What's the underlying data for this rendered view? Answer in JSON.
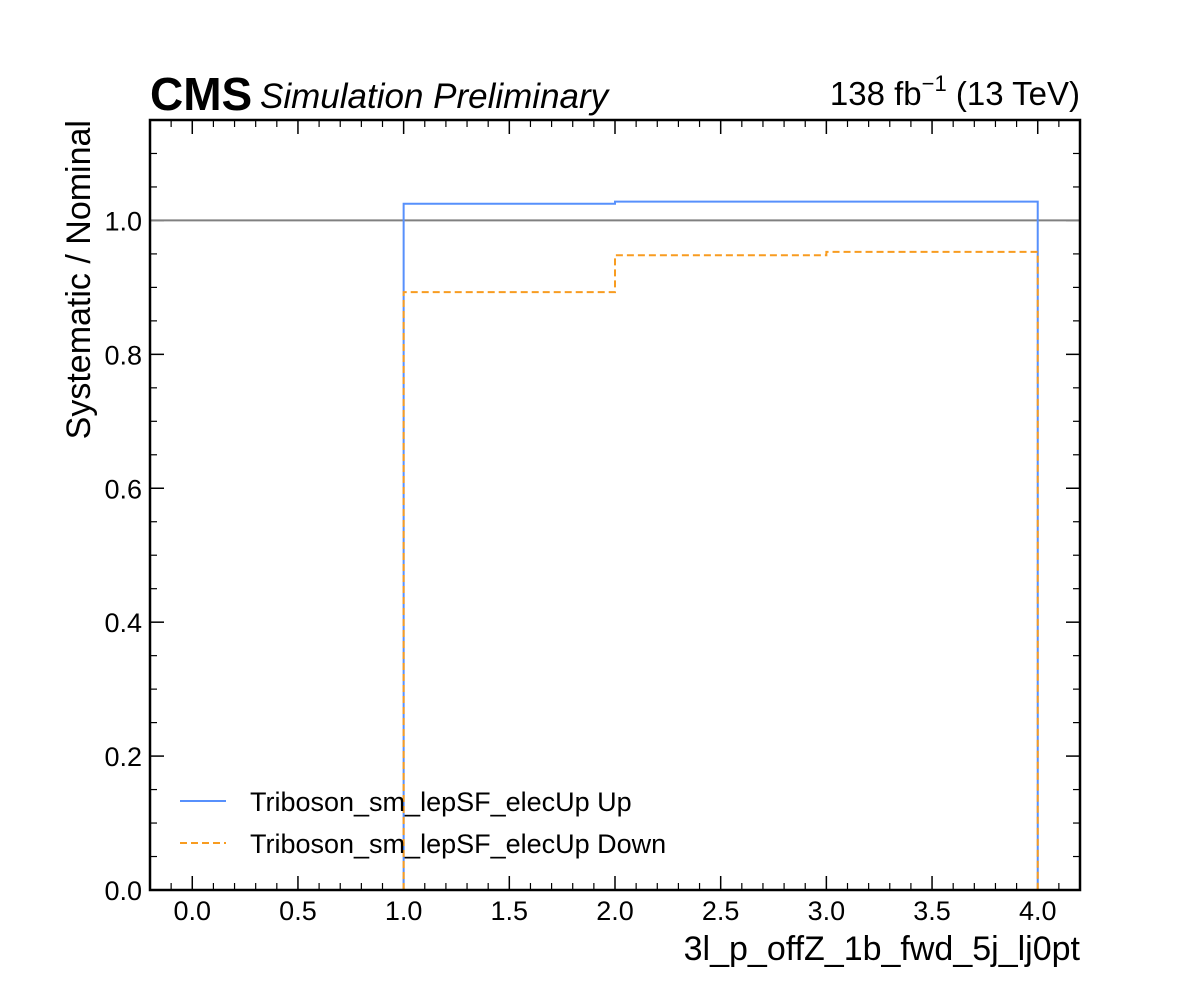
{
  "header": {
    "experiment": "CMS",
    "status": "Simulation Preliminary",
    "lumi_value": "138 fb",
    "lumi_exp": "−1",
    "lumi_energy": " (13 TeV)"
  },
  "chart_data": {
    "type": "line",
    "style": "step",
    "xlabel": "3l_p_offZ_1b_fwd_5j_lj0pt",
    "ylabel": "Systematic / Nominal",
    "xlim": [
      -0.2,
      4.2
    ],
    "ylim": [
      0.0,
      1.15
    ],
    "x_ticks": [
      "0.0",
      "0.5",
      "1.0",
      "1.5",
      "2.0",
      "2.5",
      "3.0",
      "3.5",
      "4.0"
    ],
    "y_ticks": [
      "0.0",
      "0.2",
      "0.4",
      "0.6",
      "0.8",
      "1.0"
    ],
    "reference_line": 1.0,
    "bin_edges": [
      1.0,
      2.0,
      3.0,
      4.0
    ],
    "series": [
      {
        "name": "Triboson_sm_lepSF_elecUp Up",
        "values": [
          1.025,
          1.028,
          1.028
        ],
        "color": "#5790fc",
        "dash": "solid"
      },
      {
        "name": "Triboson_sm_lepSF_elecUp Down",
        "values": [
          0.893,
          0.948,
          0.953
        ],
        "color": "#f89c20",
        "dash": "dashed"
      }
    ],
    "reference_color": "#808080",
    "legend_position": "lower-left",
    "grid": false
  }
}
